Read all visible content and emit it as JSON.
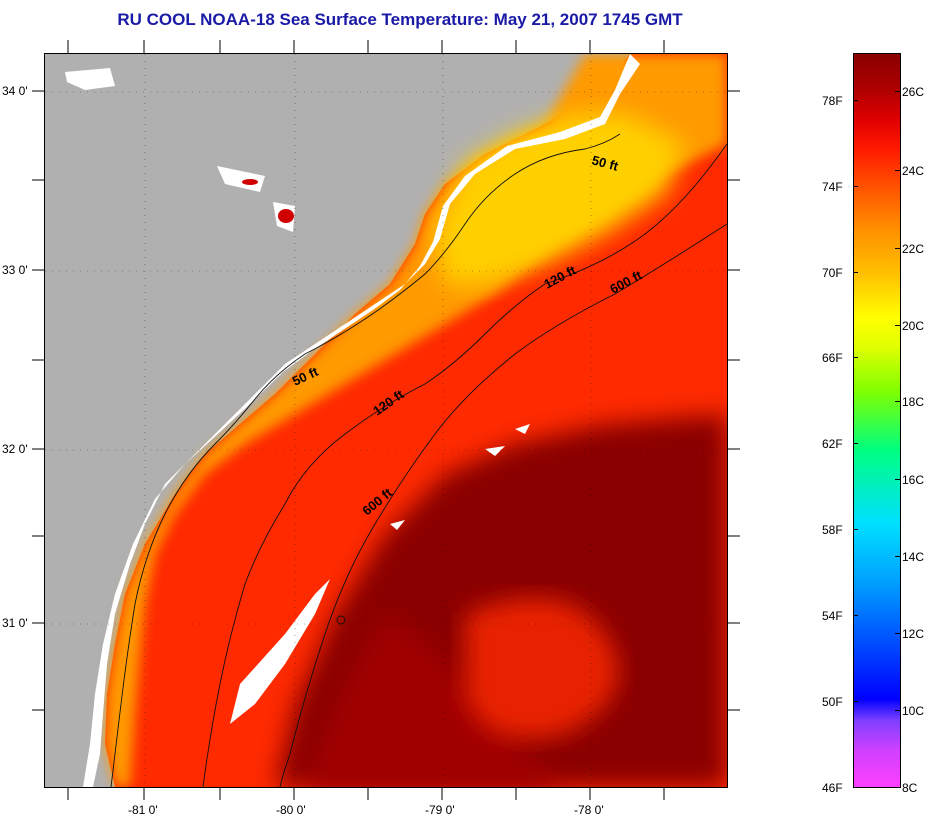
{
  "title": "RU COOL  NOAA-18  Sea Surface Temperature:  May 21, 2007 1745 GMT",
  "map": {
    "latitude_labels": [
      "34 0'",
      "33 0'",
      "32 0'",
      "31 0'"
    ],
    "longitude_labels": [
      "-81 0'",
      "-80 0'",
      "-79 0'",
      "-78 0'"
    ],
    "contour_labels": [
      "50 ft",
      "120 ft",
      "600 ft",
      "50 ft",
      "120 ft",
      "600 ft"
    ],
    "colors": {
      "land": "#b0b0b0",
      "cloud_mask": "#ffffff",
      "warm_water": "#8a0000",
      "mid_water": "#ff3a00",
      "shelf_water": "#ffa000",
      "coastal_water": "#ffd000"
    }
  },
  "colorbar": {
    "fahrenheit_labels": [
      "78F",
      "74F",
      "70F",
      "66F",
      "62F",
      "58F",
      "54F",
      "50F",
      "46F"
    ],
    "celsius_labels": [
      "26C",
      "24C",
      "22C",
      "20C",
      "18C",
      "16C",
      "14C",
      "12C",
      "10C",
      "8C"
    ]
  }
}
